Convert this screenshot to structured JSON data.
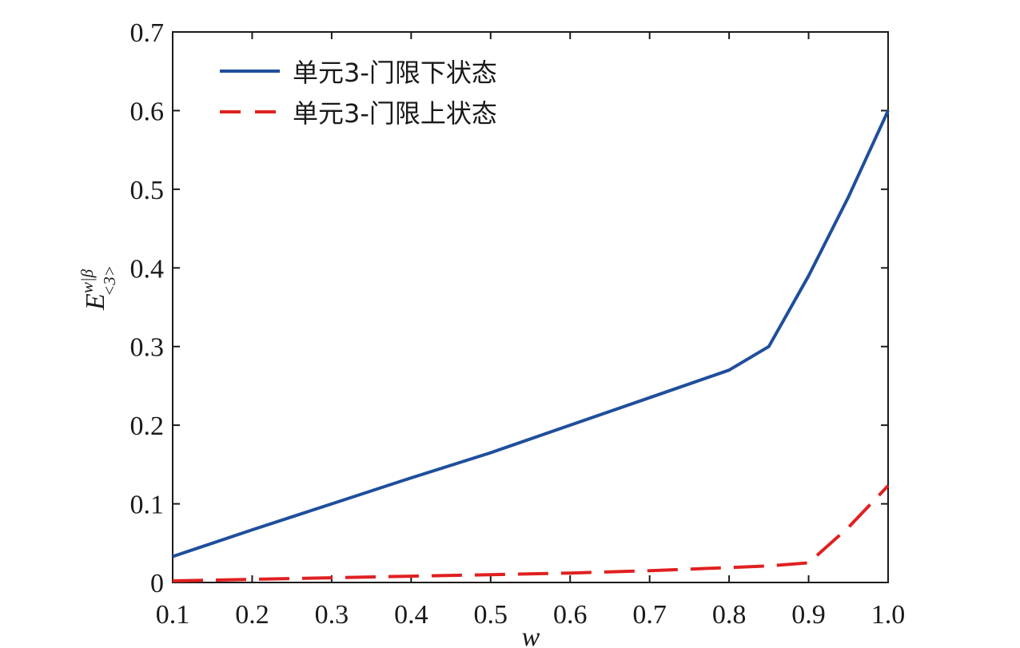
{
  "chart_data": {
    "type": "line",
    "xlabel": "w",
    "ylabel": {
      "base": "E",
      "superscript": "w|β",
      "subscript": "<3>"
    },
    "xlim": [
      0.1,
      1.0
    ],
    "ylim": [
      0,
      0.7
    ],
    "xticks": [
      "0.1",
      "0.2",
      "0.3",
      "0.4",
      "0.5",
      "0.6",
      "0.7",
      "0.8",
      "0.9",
      "1.0"
    ],
    "yticks": [
      "0",
      "0.1",
      "0.2",
      "0.3",
      "0.4",
      "0.5",
      "0.6",
      "0.7"
    ],
    "grid": false,
    "legend_position": "top-left",
    "series": [
      {
        "name": "单元3-门限下状态",
        "color": "#1f4e9c",
        "style": "solid",
        "x": [
          0.1,
          0.2,
          0.3,
          0.4,
          0.5,
          0.6,
          0.7,
          0.8,
          0.85,
          0.9,
          0.95,
          1.0
        ],
        "y": [
          0.033,
          0.067,
          0.1,
          0.133,
          0.165,
          0.2,
          0.235,
          0.27,
          0.3,
          0.39,
          0.49,
          0.6
        ]
      },
      {
        "name": "单元3-门限上状态",
        "color": "#e02020",
        "style": "dashed",
        "x": [
          0.1,
          0.2,
          0.3,
          0.4,
          0.5,
          0.6,
          0.7,
          0.8,
          0.85,
          0.9,
          0.95,
          1.0
        ],
        "y": [
          0.002,
          0.004,
          0.006,
          0.008,
          0.01,
          0.012,
          0.015,
          0.019,
          0.021,
          0.025,
          0.07,
          0.123
        ]
      }
    ]
  }
}
